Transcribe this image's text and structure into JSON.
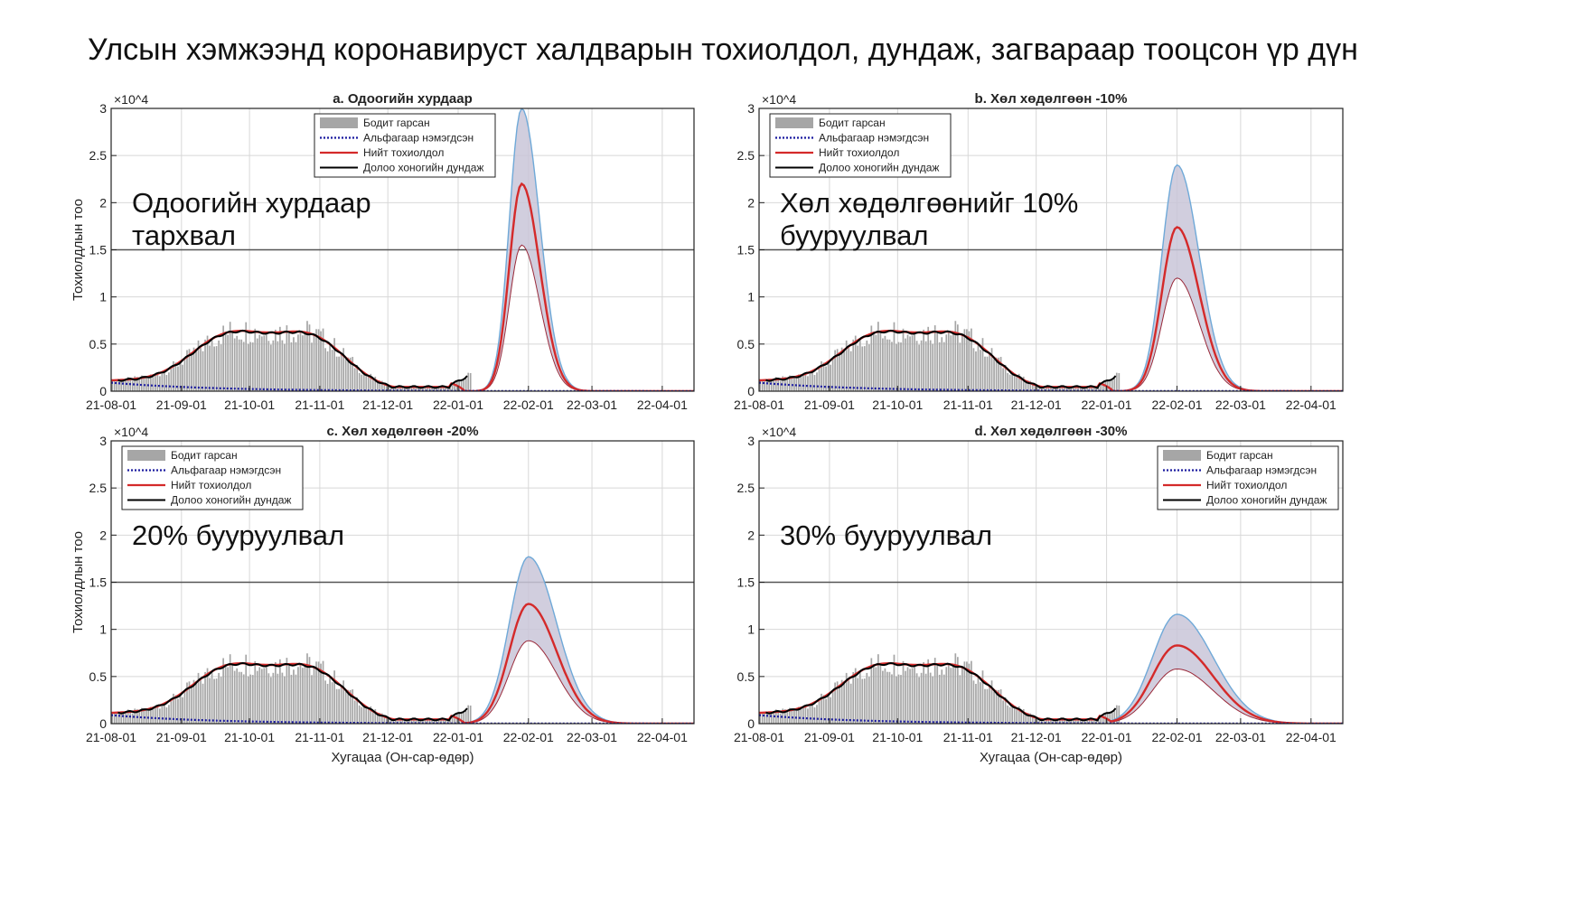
{
  "title": "Улсын хэмжээнд коронавируст халдварын тохиолдол, дундаж, загвараар тооцсон үр дүн",
  "colors": {
    "bars": "#a6a6a6",
    "red": "#d42a2a",
    "band": "#c9c6d8",
    "band_edge": "#6fa9d8",
    "ci_edge": "#9a2a3a",
    "black": "#000000",
    "blue": "#1c1ca0"
  },
  "chart_data": [
    {
      "type": "bar",
      "panel": "a",
      "title": "a. Одоогийн хурдаар",
      "overlay_lines": [
        "Одоогийн хурдаар",
        "тархвал"
      ],
      "ylabel": "Тохиолдлын тоо",
      "xlabel": "",
      "y_multiplier": "×10^4",
      "ylim": [
        0,
        3
      ],
      "yticks": [
        "0",
        "0.5",
        "1",
        "1.5",
        "2",
        "2.5",
        "3"
      ],
      "xticks": [
        "21-08-01",
        "21-09-01",
        "21-10-01",
        "21-11-01",
        "21-12-01",
        "22-01-01",
        "22-02-01",
        "22-03-01",
        "22-04-01"
      ],
      "x_range": [
        "2021-08-01",
        "2022-04-15"
      ],
      "legend": [
        "Бодит гарсан",
        "Альфагаар нэмэгдсэн",
        "Нийт тохиолдол",
        "Долоо хоногийн дундаж"
      ],
      "legend_position": "top-center",
      "projection": {
        "peak_date": "2022-01-29",
        "peak": 2.2,
        "upper": 3.0,
        "lower": 1.55,
        "width_days": 9
      }
    },
    {
      "type": "bar",
      "panel": "b",
      "title": "b. Хөл хөдөлгөөн -10%",
      "overlay_lines": [
        "Хөл хөдөлгөөнийг 10%",
        "бууруулвал"
      ],
      "ylabel": "",
      "xlabel": "",
      "y_multiplier": "×10^4",
      "ylim": [
        0,
        3
      ],
      "yticks": [
        "0",
        "0.5",
        "1",
        "1.5",
        "2",
        "2.5",
        "3"
      ],
      "xticks": [
        "21-08-01",
        "21-09-01",
        "21-10-01",
        "21-11-01",
        "21-12-01",
        "22-01-01",
        "22-02-01",
        "22-03-01",
        "22-04-01"
      ],
      "x_range": [
        "2021-08-01",
        "2022-04-15"
      ],
      "legend": [
        "Бодит гарсан",
        "Альфагаар нэмэгдсэн",
        "Нийт тохиолдол",
        "Долоо хоногийн дундаж"
      ],
      "legend_position": "top-left",
      "projection": {
        "peak_date": "2022-02-01",
        "peak": 1.74,
        "upper": 2.4,
        "lower": 1.2,
        "width_days": 11
      }
    },
    {
      "type": "bar",
      "panel": "c",
      "title": "c. Хөл хөдөлгөөн -20%",
      "overlay_lines": [
        "20% бууруулвал"
      ],
      "ylabel": "Тохиолдлын тоо",
      "xlabel": "Хугацаа (Он-сар-өдөр)",
      "y_multiplier": "×10^4",
      "ylim": [
        0,
        3
      ],
      "yticks": [
        "0",
        "0.5",
        "1",
        "1.5",
        "2",
        "2.5",
        "3"
      ],
      "xticks": [
        "21-08-01",
        "21-09-01",
        "21-10-01",
        "21-11-01",
        "21-12-01",
        "22-01-01",
        "22-02-01",
        "22-03-01",
        "22-04-01"
      ],
      "x_range": [
        "2021-08-01",
        "2022-04-15"
      ],
      "legend": [
        "Бодит гарсан",
        "Альфагаар нэмэгдсэн",
        "Нийт тохиолдол",
        "Долоо хоногийн дундаж"
      ],
      "legend_position": "top-left",
      "projection": {
        "peak_date": "2022-02-01",
        "peak": 1.27,
        "upper": 1.77,
        "lower": 0.88,
        "width_days": 14
      }
    },
    {
      "type": "bar",
      "panel": "d",
      "title": "d. Хөл хөдөлгөөн -30%",
      "overlay_lines": [
        "30% бууруулвал"
      ],
      "ylabel": "",
      "xlabel": "Хугацаа (Он-сар-өдөр)",
      "y_multiplier": "×10^4",
      "ylim": [
        0,
        3
      ],
      "yticks": [
        "0",
        "0.5",
        "1",
        "1.5",
        "2",
        "2.5",
        "3"
      ],
      "xticks": [
        "21-08-01",
        "21-09-01",
        "21-10-01",
        "21-11-01",
        "21-12-01",
        "22-01-01",
        "22-02-01",
        "22-03-01",
        "22-04-01"
      ],
      "x_range": [
        "2021-08-01",
        "2022-04-15"
      ],
      "legend": [
        "Бодит гарсан",
        "Альфагаар нэмэгдсэн",
        "Нийт тохиолдол",
        "Долоо хоногийн дундаж"
      ],
      "legend_position": "top-right",
      "projection": {
        "peak_date": "2022-02-01",
        "peak": 0.83,
        "upper": 1.16,
        "lower": 0.58,
        "width_days": 18
      }
    }
  ]
}
